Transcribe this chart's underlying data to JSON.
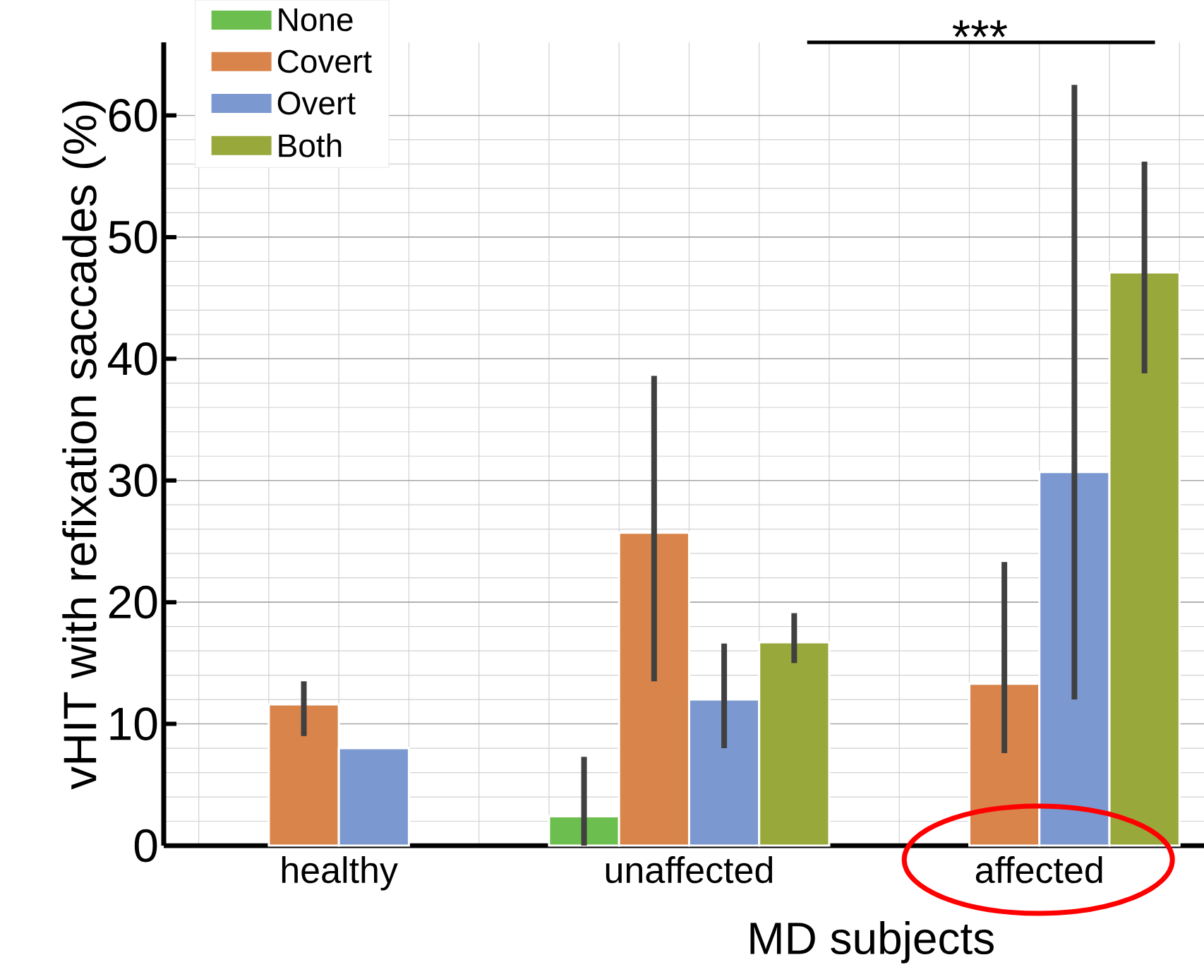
{
  "chart_data": {
    "type": "bar",
    "xlabel": "MD subjects",
    "ylabel": "vHIT with refixation saccades (%)",
    "categories": [
      "healthy",
      "unaffected",
      "affected"
    ],
    "series": [
      {
        "name": "None",
        "color": "#6cbf4e",
        "values": [
          null,
          2.4,
          null
        ],
        "errors": [
          null,
          [
            0,
            7.3
          ],
          null
        ]
      },
      {
        "name": "Covert",
        "color": "#d9844a",
        "values": [
          11.6,
          25.7,
          13.3
        ],
        "errors": [
          [
            9.0,
            13.5
          ],
          [
            13.5,
            38.6
          ],
          [
            7.6,
            23.3
          ]
        ]
      },
      {
        "name": "Overt",
        "color": "#7b98d0",
        "values": [
          8.0,
          12.0,
          30.7
        ],
        "errors": [
          null,
          [
            8.0,
            16.6
          ],
          [
            12.0,
            62.5
          ]
        ]
      },
      {
        "name": "Both",
        "color": "#98a83a",
        "values": [
          null,
          16.7,
          47.1
        ],
        "errors": [
          null,
          [
            15.0,
            19.1
          ],
          [
            38.8,
            56.2
          ]
        ]
      }
    ],
    "ylim": [
      0,
      66
    ],
    "yticks": [
      0,
      10,
      20,
      30,
      40,
      50,
      60
    ],
    "grid": true,
    "legend": "top left",
    "annotations": [
      "***"
    ]
  }
}
